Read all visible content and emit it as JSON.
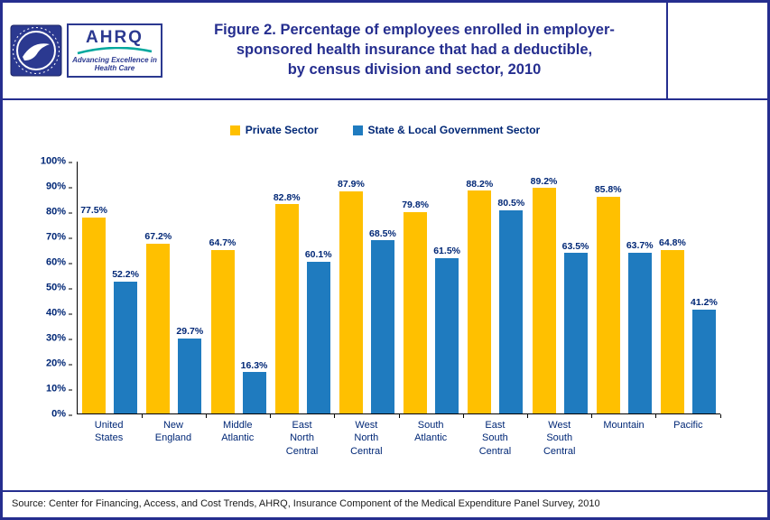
{
  "header": {
    "ahrq_acronym": "AHRQ",
    "ahrq_tagline_lines": [
      "Advancing Excellence in",
      "Health Care"
    ],
    "title_lines": [
      "Figure 2. Percentage of employees enrolled in employer-",
      "sponsored health insurance that had a deductible,",
      "by census division and sector, 2010"
    ]
  },
  "colors": {
    "navy_frame": "#252E8F",
    "chart_text": "#002776",
    "private_sector": "#FFC000",
    "government_sector": "#1F7BBF"
  },
  "chart_data": {
    "type": "bar",
    "title": "Figure 2. Percentage of employees enrolled in employer-sponsored health insurance that had a deductible, by census division and sector, 2010",
    "categories": [
      "United States",
      "New England",
      "Middle Atlantic",
      "East North Central",
      "West North Central",
      "South Atlantic",
      "East South Central",
      "West South Central",
      "Mountain",
      "Pacific"
    ],
    "series": [
      {
        "name": "Private Sector",
        "color": "#FFC000",
        "values": [
          77.5,
          67.2,
          64.7,
          82.8,
          87.9,
          79.8,
          88.2,
          89.2,
          85.8,
          64.8
        ]
      },
      {
        "name": "State & Local Government Sector",
        "color": "#1F7BBF",
        "values": [
          52.2,
          29.7,
          16.3,
          60.1,
          68.5,
          61.5,
          80.5,
          63.5,
          63.7,
          41.2
        ]
      }
    ],
    "xlabel": "",
    "ylabel": "",
    "ylim": [
      0,
      100
    ],
    "ytick_step": 10,
    "ytick_suffix": "%",
    "value_suffix": "%",
    "grid": false,
    "legend_position": "top"
  },
  "footer": {
    "source": "Source: Center for Financing, Access, and Cost Trends, AHRQ, Insurance Component of the Medical Expenditure Panel Survey, 2010"
  }
}
